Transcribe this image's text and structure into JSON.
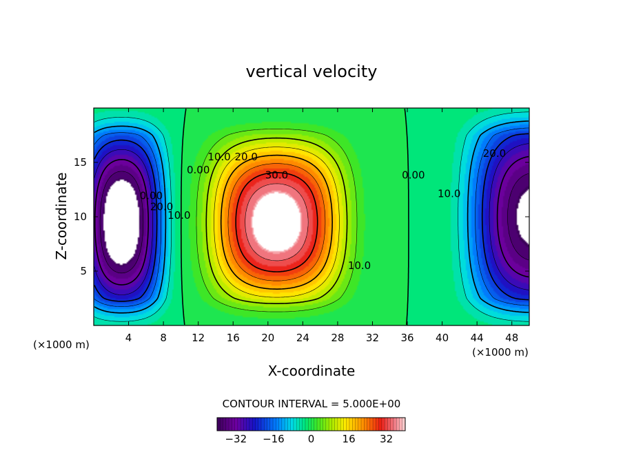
{
  "chart_data": {
    "type": "heatmap",
    "title": "vertical velocity",
    "xlabel": "X-coordinate",
    "ylabel": "Z-coordinate",
    "x_unit_label": "(×1000 m)",
    "z_unit_label": "(×1000 m)",
    "xlim": [
      0,
      50
    ],
    "ylim": [
      0,
      20
    ],
    "x_ticks": [
      4,
      8,
      12,
      16,
      20,
      24,
      28,
      32,
      36,
      40,
      44,
      48
    ],
    "y_ticks": [
      5,
      10,
      15
    ],
    "contour_interval_text": "CONTOUR INTERVAL = 5.000E+00",
    "contour_labels": [
      {
        "text": "0.00",
        "x": 12,
        "y": 14
      },
      {
        "text": "10.0",
        "x": 14.4,
        "y": 15.2
      },
      {
        "text": "20.0",
        "x": 17.5,
        "y": 15.2
      },
      {
        "text": "30.0",
        "x": 21,
        "y": 13.5
      },
      {
        "text": "10.0",
        "x": 30.5,
        "y": 5.2
      },
      {
        "text": "0.00",
        "x": 36.7,
        "y": 13.5
      },
      {
        "text": "10.0",
        "x": 40.8,
        "y": 11.8
      },
      {
        "text": "20.0",
        "x": 46,
        "y": 15.5
      },
      {
        "text": "0.00",
        "x": 6.6,
        "y": 11.6
      },
      {
        "text": "20.0",
        "x": 7.8,
        "y": 10.6
      },
      {
        "text": "10.0",
        "x": 9.8,
        "y": 9.8
      }
    ],
    "extrema": [
      {
        "kind": "max",
        "x": 21,
        "y": 9.5,
        "value": 40
      },
      {
        "kind": "min",
        "x": 3,
        "y": 9.5,
        "value": -40
      },
      {
        "kind": "min",
        "x": 50,
        "y": 10,
        "value": -35
      }
    ],
    "colorbar": {
      "min": -40,
      "max": 40,
      "ticks": [
        "−32",
        "−16",
        "0",
        "16",
        "32"
      ],
      "tick_values": [
        -32,
        -16,
        0,
        16,
        32
      ]
    },
    "grid": false,
    "legend": "none"
  }
}
